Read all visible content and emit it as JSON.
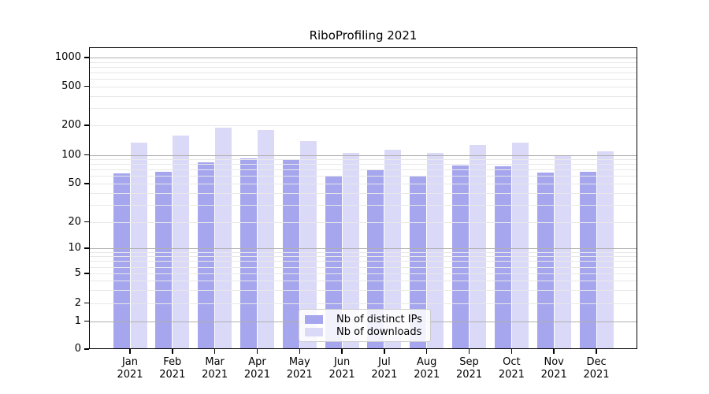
{
  "title": "RiboProfiling 2021",
  "legend": {
    "items": [
      {
        "label": "Nb of distinct IPs",
        "color": "#a6a6ee"
      },
      {
        "label": "Nb of downloads",
        "color": "#dadaf8"
      }
    ]
  },
  "colors": {
    "distinct_ips_bar": "#a6a6ee",
    "downloads_bar": "#dadaf8",
    "major_gridline": "#b0b0b0",
    "minor_gridline": "#e8e8e8",
    "axis": "#000000"
  },
  "chart_data": {
    "type": "bar",
    "title": "RiboProfiling 2021",
    "months": [
      "Jan",
      "Feb",
      "Mar",
      "Apr",
      "May",
      "Jun",
      "Jul",
      "Aug",
      "Sep",
      "Oct",
      "Nov",
      "Dec"
    ],
    "year": "2021",
    "categories": [
      "Jan 2021",
      "Feb 2021",
      "Mar 2021",
      "Apr 2021",
      "May 2021",
      "Jun 2021",
      "Jul 2021",
      "Aug 2021",
      "Sep 2021",
      "Oct 2021",
      "Nov 2021",
      "Dec 2021"
    ],
    "series": [
      {
        "name": "Nb of distinct IPs",
        "color": "#a6a6ee",
        "values": [
          64,
          67,
          83,
          92,
          89,
          61,
          71,
          61,
          77,
          76,
          65,
          66
        ]
      },
      {
        "name": "Nb of downloads",
        "color": "#dadaf8",
        "values": [
          132,
          158,
          190,
          180,
          137,
          104,
          113,
          104,
          126,
          132,
          100,
          108
        ]
      }
    ],
    "xlabel": "",
    "ylabel": "",
    "yscale": "symlog",
    "y_ticks": [
      0,
      1,
      2,
      5,
      10,
      20,
      50,
      100,
      200,
      500,
      1000
    ],
    "ylim": [
      0,
      1270
    ],
    "grid": true,
    "legend_position": "lower center"
  }
}
